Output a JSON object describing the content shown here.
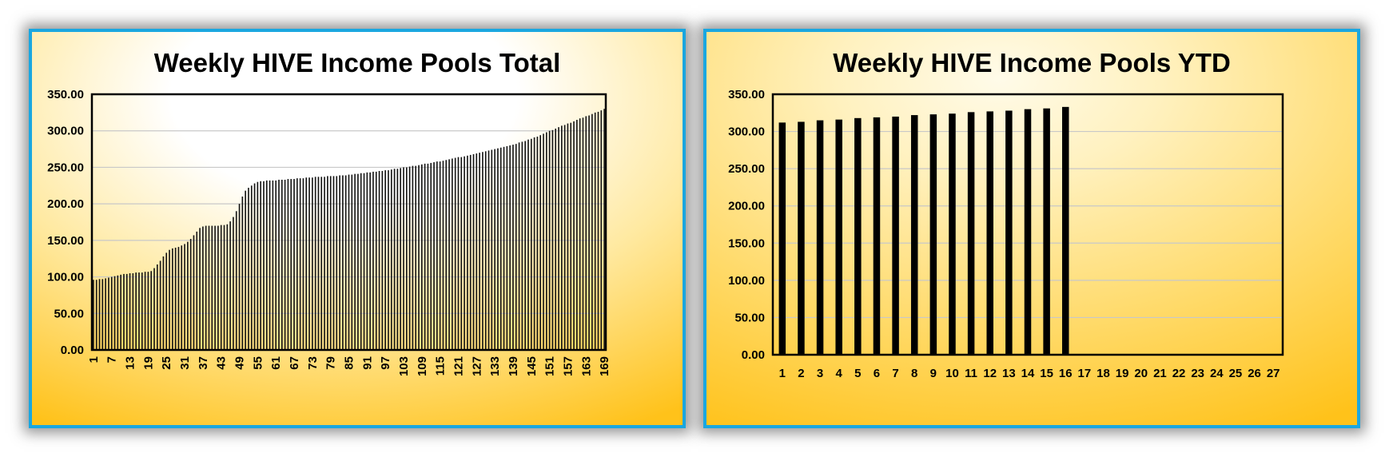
{
  "chart_data": [
    {
      "type": "bar",
      "title": "Weekly HIVE Income Pools Total",
      "xlabel": "",
      "ylabel": "",
      "ylim": [
        0,
        350
      ],
      "y_ticks": [
        "0.00",
        "50.00",
        "100.00",
        "150.00",
        "200.00",
        "250.00",
        "300.00",
        "350.00"
      ],
      "grid": true,
      "x_tick_step": 6,
      "categories_count": 169,
      "bar_color": "#000000",
      "values": [
        96,
        96,
        97,
        97,
        98,
        99,
        100,
        101,
        102,
        103,
        104,
        104,
        105,
        105,
        106,
        106,
        106,
        107,
        107,
        108,
        112,
        117,
        122,
        128,
        133,
        137,
        139,
        140,
        141,
        143,
        145,
        148,
        152,
        157,
        162,
        167,
        169,
        170,
        170,
        170,
        170,
        170,
        171,
        171,
        172,
        176,
        182,
        190,
        200,
        210,
        218,
        222,
        225,
        228,
        230,
        231,
        231,
        232,
        232,
        232,
        232,
        233,
        233,
        233,
        234,
        234,
        234,
        235,
        235,
        235,
        236,
        236,
        236,
        237,
        237,
        237,
        237,
        238,
        238,
        238,
        238,
        239,
        239,
        239,
        240,
        240,
        241,
        241,
        242,
        242,
        243,
        243,
        244,
        244,
        245,
        245,
        246,
        246,
        247,
        248,
        248,
        249,
        250,
        250,
        251,
        252,
        252,
        253,
        254,
        255,
        255,
        256,
        257,
        258,
        258,
        259,
        260,
        261,
        262,
        263,
        264,
        264,
        265,
        266,
        267,
        268,
        269,
        270,
        271,
        272,
        273,
        274,
        275,
        276,
        277,
        278,
        279,
        280,
        281,
        282,
        284,
        285,
        286,
        288,
        289,
        291,
        292,
        294,
        296,
        298,
        300,
        301,
        303,
        305,
        307,
        308,
        310,
        311,
        313,
        315,
        317,
        318,
        320,
        321,
        323,
        325,
        326,
        328,
        330
      ]
    },
    {
      "type": "bar",
      "title": "Weekly HIVE Income Pools YTD",
      "xlabel": "",
      "ylabel": "",
      "ylim": [
        0,
        350
      ],
      "y_ticks": [
        "0.00",
        "50.00",
        "100.00",
        "150.00",
        "200.00",
        "250.00",
        "300.00",
        "350.00"
      ],
      "grid": true,
      "categories": [
        "1",
        "2",
        "3",
        "4",
        "5",
        "6",
        "7",
        "8",
        "9",
        "10",
        "11",
        "12",
        "13",
        "14",
        "15",
        "16",
        "17",
        "18",
        "19",
        "20",
        "21",
        "22",
        "23",
        "24",
        "25",
        "26",
        "27"
      ],
      "values": [
        312,
        313,
        315,
        316,
        318,
        319,
        320,
        322,
        323,
        324,
        326,
        327,
        328,
        330,
        331,
        333,
        null,
        null,
        null,
        null,
        null,
        null,
        null,
        null,
        null,
        null,
        null
      ],
      "bar_color": "#000000"
    }
  ]
}
